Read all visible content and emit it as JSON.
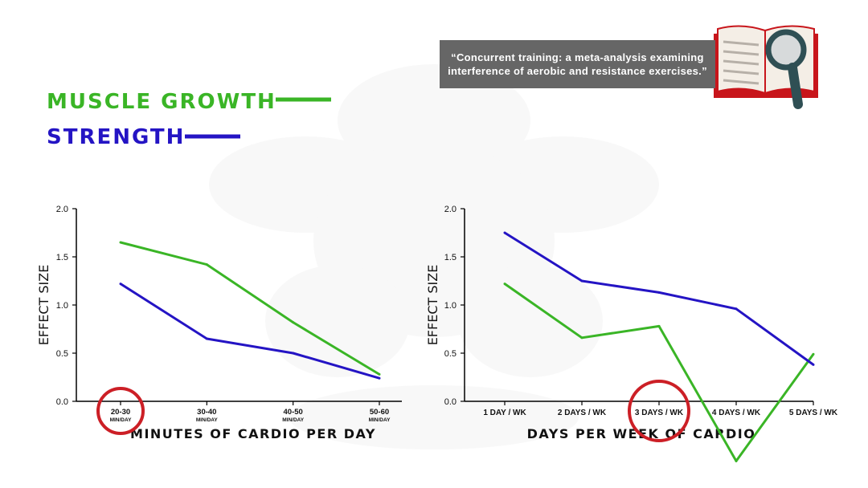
{
  "legend": [
    {
      "name": "MUSCLE GROWTH",
      "color": "#3ab526"
    },
    {
      "name": "STRENGTH",
      "color": "#2414c4"
    }
  ],
  "citation": {
    "line1": "“Concurrent training: a meta-analysis examining",
    "line2": "interference of aerobic and resistance exercises.”"
  },
  "icons": [
    "book-magnifier-icon",
    "watermark-icon",
    "highlight-circle-icon"
  ],
  "chart_data": [
    {
      "type": "line",
      "title": "",
      "xlabel": "MINUTES OF CARDIO PER DAY",
      "ylabel": "EFFECT SIZE",
      "ylim": [
        0,
        2
      ],
      "yticks": [
        "0.0",
        "0.5",
        "1.0",
        "1.5",
        "2.0"
      ],
      "categories": [
        "20-30",
        "30-40",
        "40-50",
        "50-60"
      ],
      "category_sublabel": "MIN/DAY",
      "highlight_category": 0,
      "series": [
        {
          "name": "MUSCLE GROWTH",
          "color": "#3ab526",
          "values": [
            1.65,
            1.42,
            0.82,
            0.28
          ]
        },
        {
          "name": "STRENGTH",
          "color": "#2414c4",
          "values": [
            1.22,
            0.65,
            0.5,
            0.24
          ]
        }
      ]
    },
    {
      "type": "line",
      "title": "",
      "xlabel": "DAYS PER WEEK OF CARDIO",
      "ylabel": "EFFECT SIZE",
      "ylim": [
        0,
        2
      ],
      "yticks": [
        "0.0",
        "0.5",
        "1.0",
        "1.5",
        "2.0"
      ],
      "categories": [
        "1 DAY / WK",
        "2 DAYS / WK",
        "3 DAYS / WK",
        "4 DAYS / WK",
        "5 DAYS / WK"
      ],
      "category_sublabel": "",
      "highlight_category": 2,
      "series": [
        {
          "name": "MUSCLE GROWTH",
          "color": "#3ab526",
          "values": [
            1.22,
            0.66,
            0.78,
            -0.62,
            0.49
          ]
        },
        {
          "name": "STRENGTH",
          "color": "#2414c4",
          "values": [
            1.75,
            1.25,
            1.13,
            0.96,
            0.38
          ]
        }
      ]
    }
  ]
}
